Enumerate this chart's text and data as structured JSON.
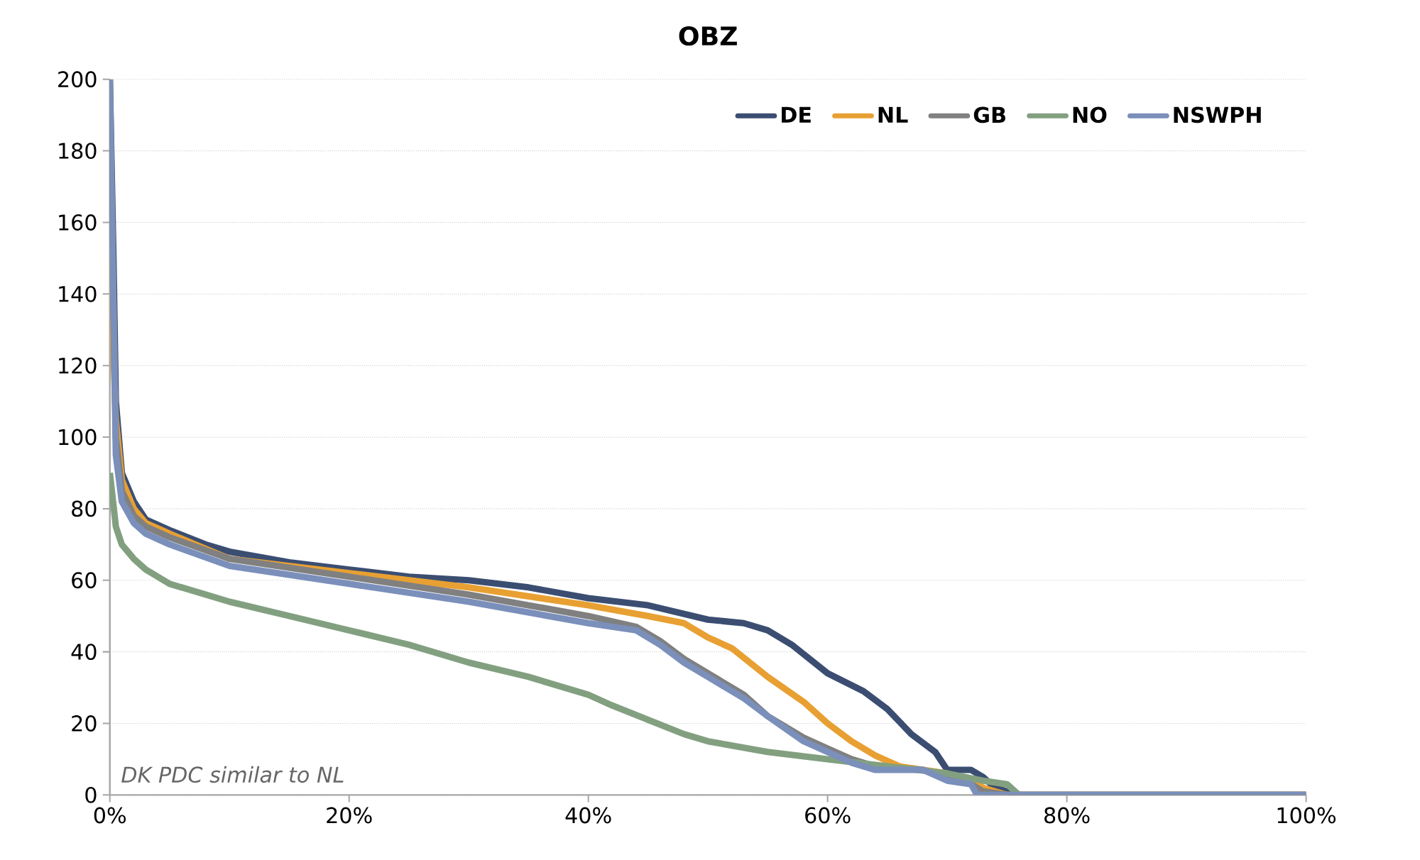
{
  "chart_data": {
    "type": "line",
    "title": "OBZ",
    "annotations": [
      "DK PDC similar to NL"
    ],
    "xlim": [
      0,
      100
    ],
    "ylim": [
      0,
      200
    ],
    "xticks": [
      {
        "value": 0,
        "label": "0%"
      },
      {
        "value": 20,
        "label": "20%"
      },
      {
        "value": 40,
        "label": "40%"
      },
      {
        "value": 60,
        "label": "60%"
      },
      {
        "value": 80,
        "label": "80%"
      },
      {
        "value": 100,
        "label": "100%"
      }
    ],
    "yticks": [
      0,
      20,
      40,
      60,
      80,
      100,
      120,
      140,
      160,
      180,
      200
    ],
    "grid": "y",
    "legend": "top right",
    "marker": "none",
    "line_style": "solid",
    "series": [
      {
        "name": "DE",
        "color": "#3b4e72",
        "x": [
          0,
          0.3,
          0.5,
          1,
          2,
          3,
          5,
          8,
          10,
          15,
          20,
          25,
          30,
          35,
          40,
          45,
          50,
          53,
          55,
          57,
          60,
          63,
          65,
          67,
          69,
          70,
          72,
          73,
          74,
          76,
          100
        ],
        "values": [
          200,
          150,
          110,
          90,
          82,
          77,
          74,
          70,
          68,
          65,
          63,
          61,
          60,
          58,
          55,
          53,
          49,
          48,
          46,
          42,
          34,
          29,
          24,
          17,
          12,
          7,
          7,
          5,
          2,
          0,
          0
        ]
      },
      {
        "name": "NL",
        "color": "#e8a033",
        "x": [
          0,
          0.5,
          1,
          2,
          3,
          5,
          10,
          20,
          30,
          40,
          45,
          48,
          50,
          52,
          55,
          58,
          60,
          62,
          64,
          66,
          68,
          70,
          72,
          73,
          75,
          100
        ],
        "values": [
          150,
          105,
          88,
          80,
          76,
          73,
          66,
          62,
          58,
          53,
          50,
          48,
          44,
          41,
          33,
          26,
          20,
          15,
          11,
          8,
          7,
          6,
          4,
          2,
          0,
          0
        ]
      },
      {
        "name": "GB",
        "color": "#808080",
        "x": [
          0,
          0.5,
          1,
          2,
          3,
          5,
          10,
          20,
          30,
          40,
          44,
          46,
          48,
          50,
          53,
          55,
          58,
          60,
          62,
          64,
          68,
          70,
          72,
          73,
          75,
          100
        ],
        "values": [
          190,
          100,
          85,
          78,
          75,
          72,
          66,
          61,
          56,
          50,
          47,
          43,
          38,
          34,
          28,
          22,
          16,
          13,
          10,
          8,
          7,
          5,
          3,
          1,
          0,
          0
        ]
      },
      {
        "name": "NO",
        "color": "#82a080",
        "x": [
          0,
          0.5,
          1,
          2,
          3,
          5,
          8,
          10,
          15,
          20,
          25,
          30,
          35,
          40,
          42,
          45,
          48,
          50,
          55,
          60,
          65,
          70,
          73,
          75,
          76,
          100
        ],
        "values": [
          90,
          75,
          70,
          66,
          63,
          59,
          56,
          54,
          50,
          46,
          42,
          37,
          33,
          28,
          25,
          21,
          17,
          15,
          12,
          10,
          8,
          6,
          4,
          3,
          0,
          0
        ]
      },
      {
        "name": "NSWPH",
        "color": "#7b8fbb",
        "x": [
          0,
          0.5,
          1,
          2,
          3,
          5,
          10,
          20,
          30,
          40,
          44,
          46,
          48,
          50,
          53,
          55,
          58,
          60,
          62,
          64,
          68,
          70,
          72,
          72.5,
          100
        ],
        "values": [
          200,
          95,
          82,
          76,
          73,
          70,
          64,
          59,
          54,
          48,
          46,
          42,
          37,
          33,
          27,
          22,
          15,
          12,
          9,
          7,
          7,
          4,
          3,
          0,
          0
        ]
      }
    ]
  }
}
